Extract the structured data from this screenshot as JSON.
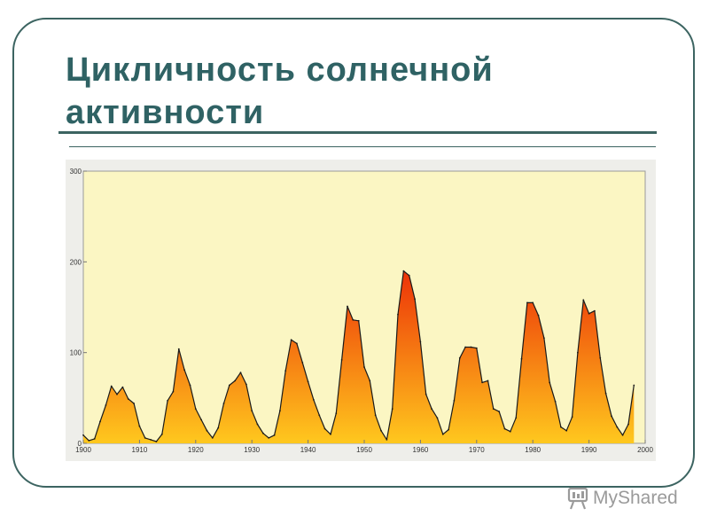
{
  "slide": {
    "title": "Цикличность солнечной активности"
  },
  "watermark": {
    "text": "MyShared",
    "icon": "presentation-board-icon"
  },
  "colors": {
    "frame": "#3c6461",
    "title": "#2f6264",
    "plot_background": "#fbf6c3",
    "fill_low": "#ffc81e",
    "fill_high": "#e60000",
    "outline": "#1a1a1a"
  },
  "chart_data": {
    "type": "area",
    "title": "",
    "xlabel": "",
    "ylabel": "",
    "xlim": [
      1900,
      2000
    ],
    "ylim": [
      0,
      300
    ],
    "x_ticks": [
      "1900",
      "1910",
      "1920",
      "1930",
      "1940",
      "1950",
      "1960",
      "1970",
      "1980",
      "1990",
      "2000"
    ],
    "y_ticks": [
      "0",
      "100",
      "200",
      "300"
    ],
    "grid": false,
    "legend": "none",
    "series": [
      {
        "x": [
          1900,
          1901,
          1902,
          1903,
          1904,
          1905,
          1906,
          1907,
          1908,
          1909,
          1910,
          1911,
          1912,
          1913,
          1914,
          1915,
          1916,
          1917,
          1918,
          1919,
          1920,
          1921,
          1922,
          1923,
          1924,
          1925,
          1926,
          1927,
          1928,
          1929,
          1930,
          1931,
          1932,
          1933,
          1934,
          1935,
          1936,
          1937,
          1938,
          1939,
          1940,
          1941,
          1942,
          1943,
          1944,
          1945,
          1946,
          1947,
          1948,
          1949,
          1950,
          1951,
          1952,
          1953,
          1954,
          1955,
          1956,
          1957,
          1958,
          1959,
          1960,
          1961,
          1962,
          1963,
          1964,
          1965,
          1966,
          1967,
          1968,
          1969,
          1970,
          1971,
          1972,
          1973,
          1974,
          1975,
          1976,
          1977,
          1978,
          1979,
          1980,
          1981,
          1982,
          1983,
          1984,
          1985,
          1986,
          1987,
          1988,
          1989,
          1990,
          1991,
          1992,
          1993,
          1994,
          1995,
          1996,
          1997,
          1998
        ],
        "values": [
          9,
          3,
          5,
          24,
          42,
          63,
          54,
          62,
          49,
          44,
          19,
          6,
          4,
          2,
          10,
          47,
          57,
          104,
          81,
          64,
          38,
          26,
          14,
          6,
          17,
          44,
          64,
          69,
          78,
          65,
          36,
          21,
          11,
          6,
          9,
          36,
          80,
          114,
          110,
          89,
          68,
          48,
          31,
          16,
          10,
          33,
          92,
          151,
          136,
          135,
          84,
          69,
          31,
          14,
          4,
          38,
          142,
          190,
          185,
          159,
          112,
          54,
          38,
          28,
          10,
          15,
          47,
          94,
          106,
          106,
          105,
          67,
          69,
          38,
          35,
          16,
          13,
          28,
          93,
          155,
          155,
          141,
          116,
          67,
          46,
          18,
          14,
          29,
          100,
          158,
          143,
          146,
          94,
          55,
          30,
          18,
          9,
          21,
          64
        ]
      }
    ]
  }
}
